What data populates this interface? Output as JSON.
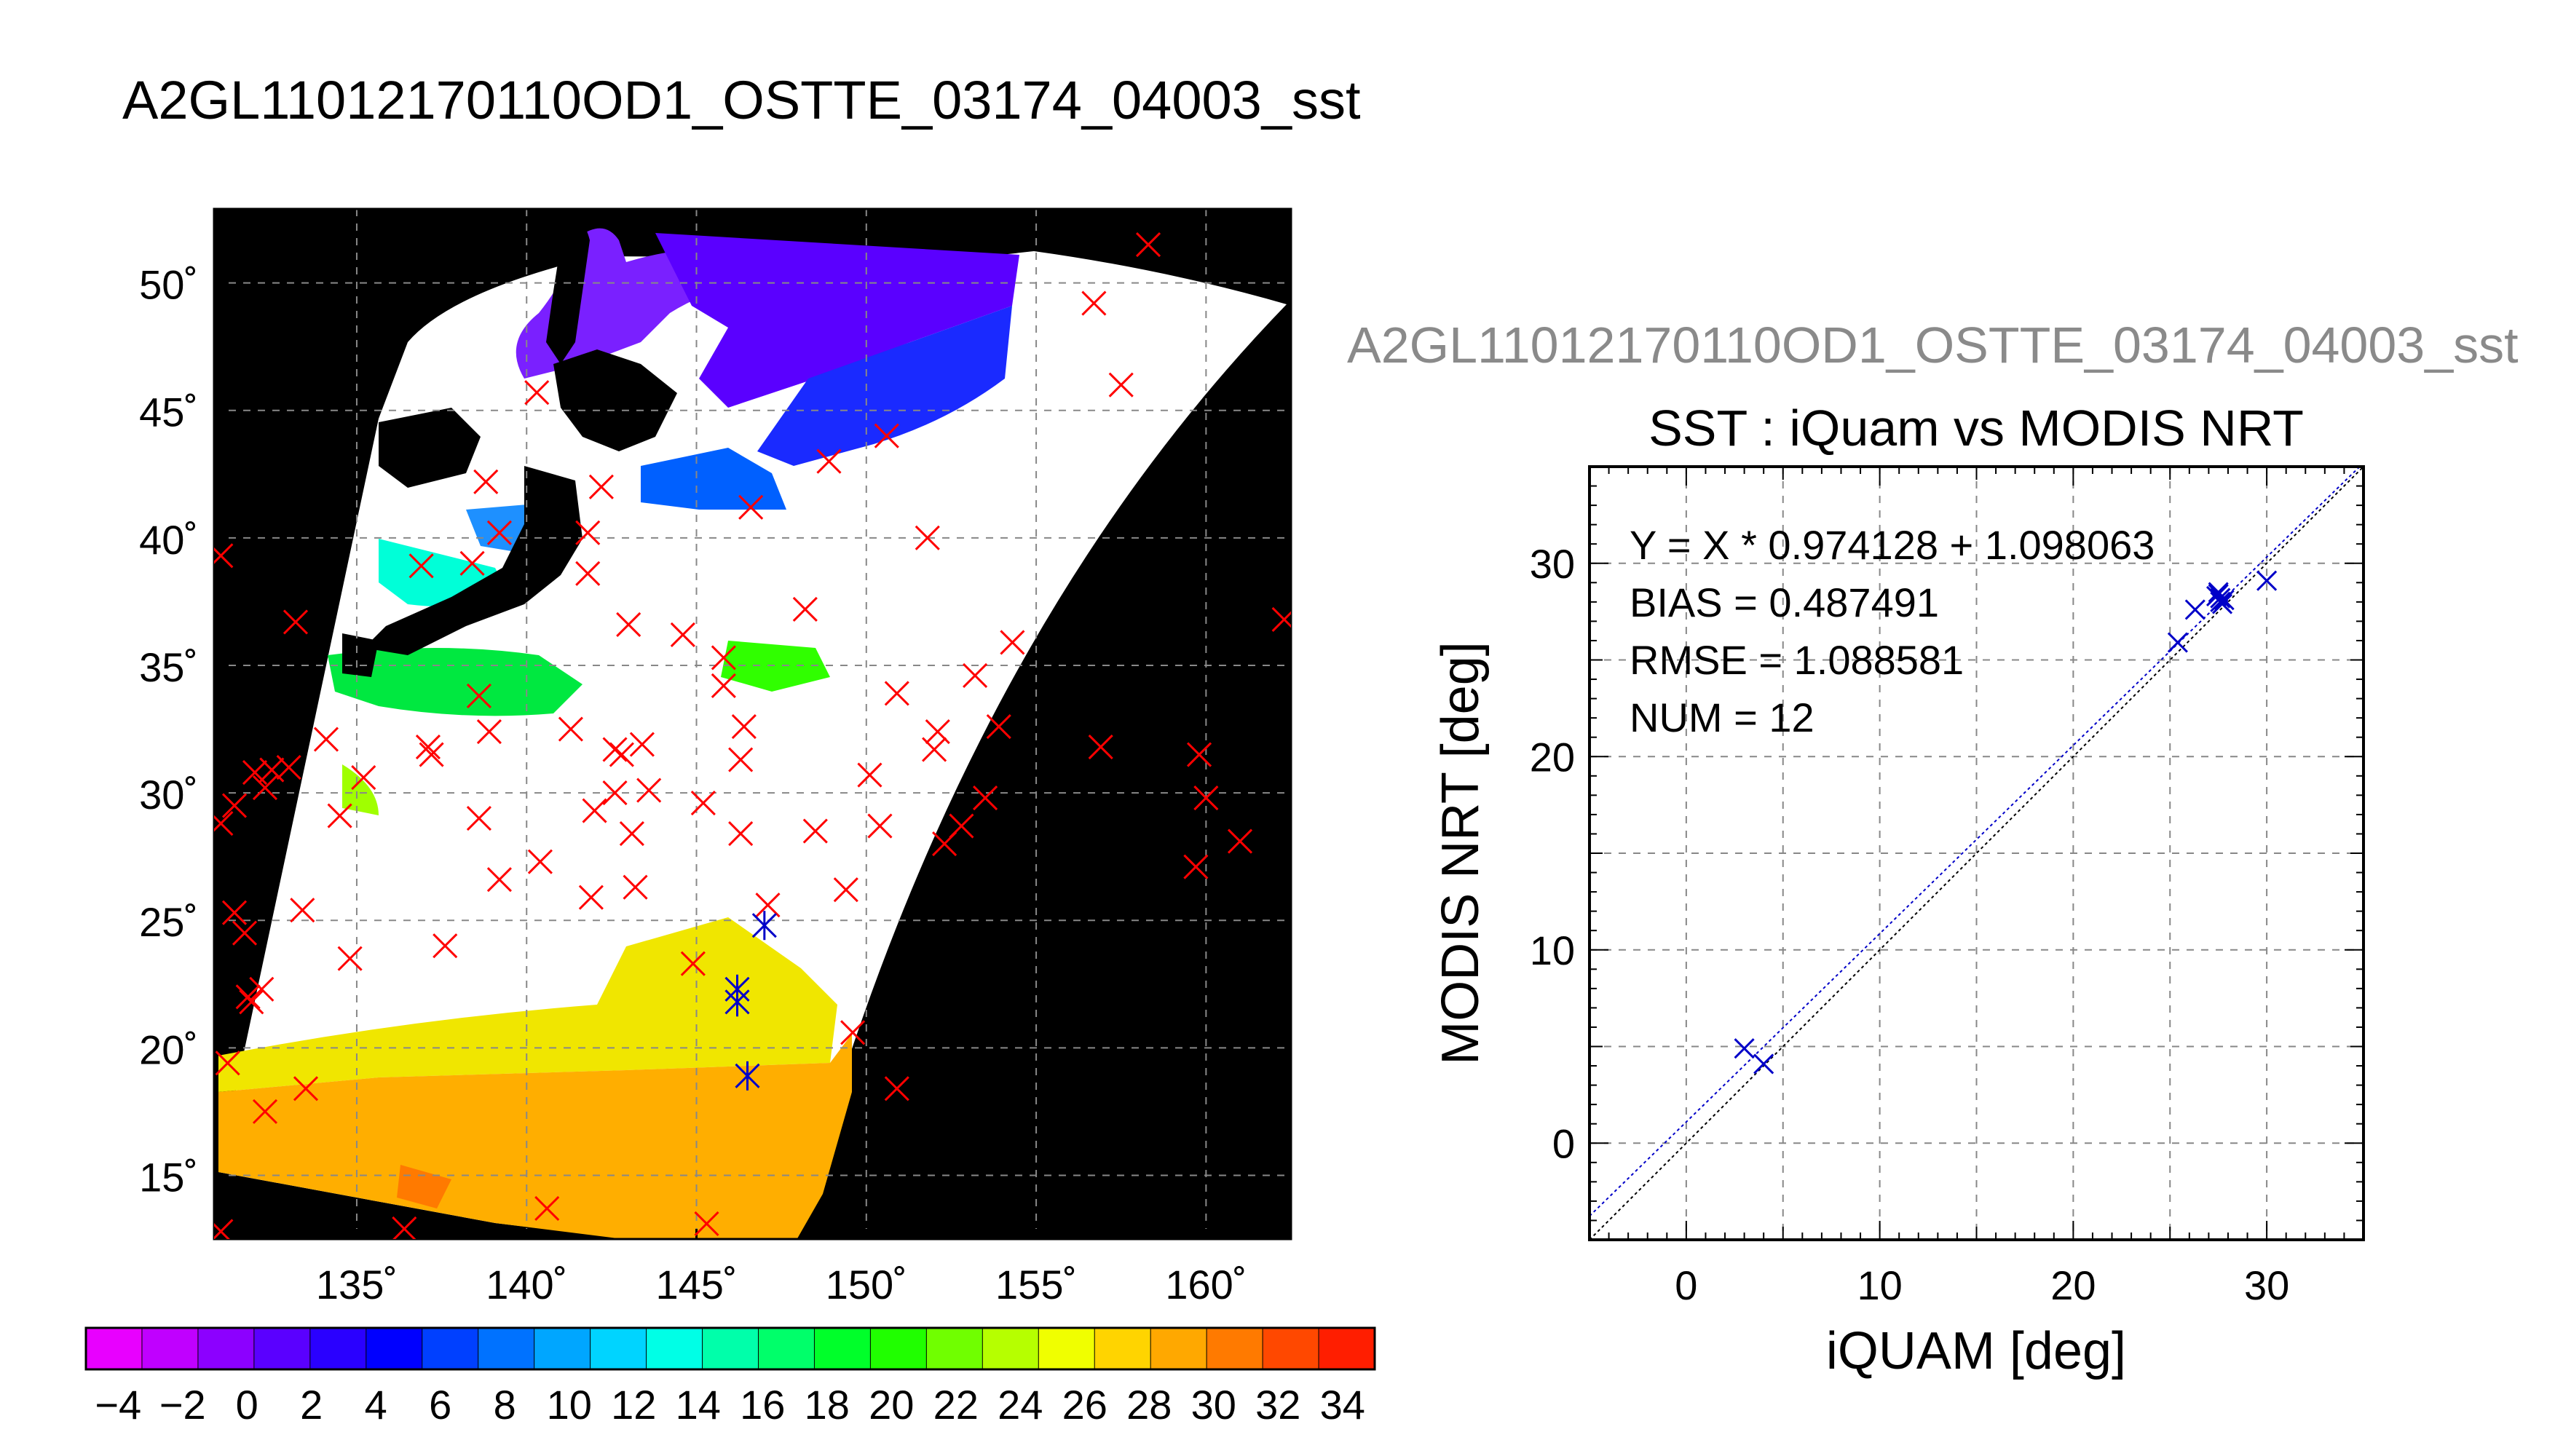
{
  "title": "A2GL11012170110OD1_OSTTE_03174_04003_sst",
  "chart_data": [
    {
      "type": "map",
      "description": "sst",
      "xlim": [
        130.8,
        162.5
      ],
      "ylim": [
        12.5,
        52.9
      ],
      "x_ticks": [
        135,
        140,
        145,
        150,
        155,
        160
      ],
      "y_ticks": [
        15,
        20,
        25,
        30,
        35,
        40,
        45,
        50
      ],
      "x_tick_labels": [
        "135˚",
        "140˚",
        "145˚",
        "150˚",
        "155˚",
        "160˚"
      ],
      "y_tick_labels": [
        "15˚",
        "20˚",
        "25˚",
        "30˚",
        "35˚",
        "40˚",
        "45˚",
        "50˚"
      ],
      "grid": true,
      "series": [
        {
          "marker": "x",
          "color": "#ff0000",
          "points": [
            [
              131.0,
              39.3
            ],
            [
              131.0,
              12.8
            ],
            [
              131.4,
              25.3
            ],
            [
              131.7,
              24.5
            ],
            [
              132.0,
              30.8
            ],
            [
              132.3,
              30.2
            ],
            [
              131.9,
              21.8
            ],
            [
              132.2,
              22.3
            ],
            [
              131.4,
              29.5
            ],
            [
              131.2,
              19.4
            ],
            [
              131.0,
              28.8
            ],
            [
              131.8,
              22.0
            ],
            [
              132.5,
              30.9
            ],
            [
              132.3,
              17.5
            ],
            [
              133.0,
              31.0
            ],
            [
              133.2,
              36.7
            ],
            [
              133.4,
              25.4
            ],
            [
              133.5,
              18.4
            ],
            [
              134.1,
              32.1
            ],
            [
              134.5,
              29.1
            ],
            [
              134.8,
              23.5
            ],
            [
              135.2,
              30.6
            ],
            [
              136.4,
              12.9
            ],
            [
              136.9,
              38.9
            ],
            [
              137.1,
              31.8
            ],
            [
              137.2,
              31.5
            ],
            [
              137.6,
              24.0
            ],
            [
              138.4,
              39.0
            ],
            [
              138.6,
              29.0
            ],
            [
              138.6,
              33.8
            ],
            [
              138.8,
              42.2
            ],
            [
              138.9,
              32.4
            ],
            [
              139.2,
              26.6
            ],
            [
              139.2,
              40.2
            ],
            [
              140.3,
              45.7
            ],
            [
              140.4,
              27.3
            ],
            [
              140.6,
              13.7
            ],
            [
              141.3,
              32.5
            ],
            [
              141.8,
              40.2
            ],
            [
              141.8,
              38.6
            ],
            [
              141.9,
              25.9
            ],
            [
              142.2,
              42.0
            ],
            [
              142.0,
              29.3
            ],
            [
              142.6,
              31.7
            ],
            [
              142.6,
              30.0
            ],
            [
              142.8,
              31.5
            ],
            [
              143.0,
              36.6
            ],
            [
              143.2,
              26.3
            ],
            [
              143.1,
              28.4
            ],
            [
              143.4,
              31.9
            ],
            [
              143.6,
              30.1
            ],
            [
              144.6,
              36.2
            ],
            [
              144.9,
              23.3
            ],
            [
              145.2,
              29.6
            ],
            [
              145.3,
              13.1
            ],
            [
              145.8,
              35.3
            ],
            [
              145.8,
              34.2
            ],
            [
              146.3,
              31.3
            ],
            [
              146.3,
              28.4
            ],
            [
              146.4,
              32.6
            ],
            [
              146.6,
              41.2
            ],
            [
              147.1,
              25.6
            ],
            [
              148.2,
              37.2
            ],
            [
              148.5,
              28.5
            ],
            [
              148.9,
              43.0
            ],
            [
              149.4,
              26.2
            ],
            [
              149.6,
              20.6
            ],
            [
              150.1,
              30.7
            ],
            [
              150.4,
              28.7
            ],
            [
              150.6,
              44.0
            ],
            [
              150.9,
              33.9
            ],
            [
              150.9,
              18.4
            ],
            [
              151.8,
              40.0
            ],
            [
              152.0,
              31.7
            ],
            [
              152.1,
              32.4
            ],
            [
              152.3,
              28.0
            ],
            [
              152.8,
              28.7
            ],
            [
              153.2,
              34.6
            ],
            [
              153.5,
              29.8
            ],
            [
              153.9,
              32.6
            ],
            [
              154.3,
              35.9
            ],
            [
              156.7,
              49.2
            ],
            [
              156.9,
              31.8
            ],
            [
              157.5,
              46.0
            ],
            [
              158.3,
              51.5
            ],
            [
              159.7,
              27.1
            ],
            [
              159.8,
              31.5
            ],
            [
              160.0,
              29.8
            ],
            [
              161.0,
              28.1
            ],
            [
              162.3,
              36.8
            ]
          ]
        },
        {
          "marker": "asterisk",
          "color": "#0000c8",
          "points": [
            [
              146.2,
              22.3
            ],
            [
              146.2,
              21.8
            ],
            [
              146.5,
              18.9
            ],
            [
              147.0,
              24.8
            ]
          ]
        }
      ]
    },
    {
      "type": "colorbar",
      "range": [
        -5,
        35
      ],
      "tick_labels": [
        "−4",
        "−2",
        "0",
        "2",
        "4",
        "6",
        "8",
        "10",
        "12",
        "14",
        "16",
        "18",
        "20",
        "22",
        "24",
        "26",
        "28",
        "30",
        "32",
        "34"
      ],
      "tick_values": [
        -4,
        -2,
        0,
        2,
        4,
        6,
        8,
        10,
        12,
        14,
        16,
        18,
        20,
        22,
        24,
        26,
        28,
        30,
        32,
        34
      ],
      "colors": [
        "#e800ff",
        "#c000ff",
        "#8c00ff",
        "#5a00ff",
        "#2a00ff",
        "#0000ff",
        "#0040ff",
        "#0072ff",
        "#00a6ff",
        "#00d4ff",
        "#00ffe6",
        "#00ffaa",
        "#00ff6a",
        "#00ff2a",
        "#20ff00",
        "#70ff00",
        "#b6ff00",
        "#f0ff00",
        "#ffd400",
        "#ffa800",
        "#ff7a00",
        "#ff4800",
        "#ff1e00"
      ]
    },
    {
      "type": "scatter",
      "subtitle": "A2GL11012170110OD1_OSTTE_03174_04003_sst",
      "title": "SST : iQuam vs MODIS NRT",
      "xlabel": "iQUAM [deg]",
      "ylabel": "MODIS NRT [deg]",
      "xlim": [
        -5,
        35
      ],
      "ylim": [
        -5,
        35
      ],
      "x_ticks": [
        0,
        10,
        20,
        30
      ],
      "y_ticks": [
        0,
        10,
        20,
        30
      ],
      "x_tick_labels": [
        "0",
        "10",
        "20",
        "30"
      ],
      "y_tick_labels": [
        "0",
        "10",
        "20",
        "30"
      ],
      "grid": true,
      "annotations": [
        "Y = X * 0.974128 + 1.098063",
        "BIAS = 0.487491",
        "RMSE = 1.088581",
        "NUM = 12"
      ],
      "fit": {
        "slope": 0.974128,
        "intercept": 1.098063,
        "color": "#0000c8"
      },
      "reference_line": {
        "slope": 1,
        "intercept": 0,
        "color": "#000000"
      },
      "points": [
        {
          "x": 3.0,
          "y": 4.9
        },
        {
          "x": 4.0,
          "y": 4.1
        },
        {
          "x": 25.4,
          "y": 25.9
        },
        {
          "x": 26.3,
          "y": 27.6
        },
        {
          "x": 27.4,
          "y": 28.3
        },
        {
          "x": 27.6,
          "y": 28.0
        },
        {
          "x": 27.5,
          "y": 28.5
        },
        {
          "x": 27.7,
          "y": 27.9
        },
        {
          "x": 27.6,
          "y": 28.2
        },
        {
          "x": 27.8,
          "y": 28.1
        },
        {
          "x": 30.0,
          "y": 29.1
        },
        {
          "x": 27.5,
          "y": 28.4
        }
      ],
      "marker_color": "#0000c8"
    }
  ]
}
